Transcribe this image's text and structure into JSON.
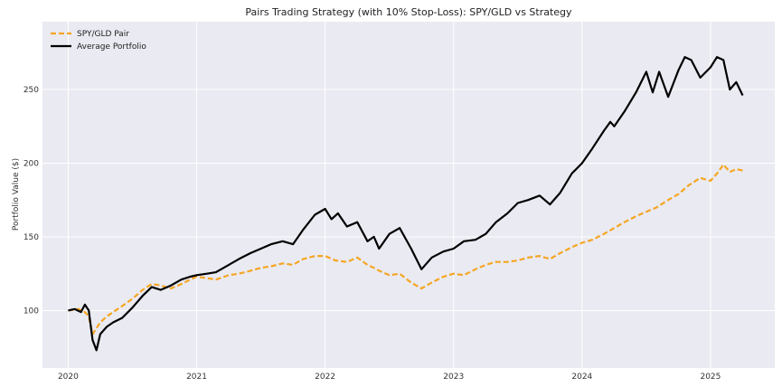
{
  "chart_data": {
    "type": "line",
    "title": "Pairs Trading Strategy (with 10% Stop-Loss): SPY/GLD vs Strategy",
    "xlabel": "",
    "ylabel": "Portfolio Value ($)",
    "xlim": [
      2019.8,
      2025.5
    ],
    "ylim": [
      61,
      296
    ],
    "x_ticks": [
      "2020",
      "2021",
      "2022",
      "2023",
      "2024",
      "2025"
    ],
    "y_ticks": [
      100,
      150,
      200,
      250
    ],
    "grid": true,
    "legend_position": "top-left",
    "background": "#eaeaf2",
    "series": [
      {
        "name": "SPY/GLD Pair",
        "color": "#f5a623",
        "dash": true,
        "points": [
          [
            2020.0,
            100
          ],
          [
            2020.08,
            101
          ],
          [
            2020.13,
            99
          ],
          [
            2020.16,
            96
          ],
          [
            2020.19,
            84
          ],
          [
            2020.22,
            88
          ],
          [
            2020.25,
            92
          ],
          [
            2020.3,
            96
          ],
          [
            2020.35,
            99
          ],
          [
            2020.42,
            103
          ],
          [
            2020.5,
            108
          ],
          [
            2020.58,
            114
          ],
          [
            2020.65,
            118
          ],
          [
            2020.72,
            117
          ],
          [
            2020.8,
            115
          ],
          [
            2020.88,
            118
          ],
          [
            2020.95,
            121
          ],
          [
            2021.0,
            123
          ],
          [
            2021.08,
            122
          ],
          [
            2021.15,
            121
          ],
          [
            2021.25,
            124
          ],
          [
            2021.33,
            125
          ],
          [
            2021.42,
            127
          ],
          [
            2021.5,
            129
          ],
          [
            2021.58,
            130
          ],
          [
            2021.67,
            132
          ],
          [
            2021.75,
            131
          ],
          [
            2021.83,
            135
          ],
          [
            2021.92,
            137
          ],
          [
            2022.0,
            137
          ],
          [
            2022.08,
            134
          ],
          [
            2022.17,
            133
          ],
          [
            2022.25,
            136
          ],
          [
            2022.33,
            131
          ],
          [
            2022.38,
            129
          ],
          [
            2022.42,
            127
          ],
          [
            2022.5,
            124
          ],
          [
            2022.58,
            125
          ],
          [
            2022.67,
            119
          ],
          [
            2022.75,
            115
          ],
          [
            2022.83,
            119
          ],
          [
            2022.92,
            123
          ],
          [
            2023.0,
            125
          ],
          [
            2023.08,
            124
          ],
          [
            2023.17,
            128
          ],
          [
            2023.25,
            131
          ],
          [
            2023.33,
            133
          ],
          [
            2023.42,
            133
          ],
          [
            2023.5,
            134
          ],
          [
            2023.58,
            136
          ],
          [
            2023.67,
            137
          ],
          [
            2023.75,
            135
          ],
          [
            2023.83,
            139
          ],
          [
            2023.92,
            143
          ],
          [
            2024.0,
            146
          ],
          [
            2024.08,
            148
          ],
          [
            2024.17,
            152
          ],
          [
            2024.25,
            156
          ],
          [
            2024.33,
            160
          ],
          [
            2024.42,
            164
          ],
          [
            2024.5,
            167
          ],
          [
            2024.58,
            170
          ],
          [
            2024.67,
            175
          ],
          [
            2024.75,
            179
          ],
          [
            2024.83,
            185
          ],
          [
            2024.92,
            190
          ],
          [
            2025.0,
            188
          ],
          [
            2025.05,
            193
          ],
          [
            2025.1,
            199
          ],
          [
            2025.15,
            194
          ],
          [
            2025.2,
            196
          ],
          [
            2025.25,
            195
          ]
        ]
      },
      {
        "name": "Average Portfolio",
        "color": "#000000",
        "dash": false,
        "points": [
          [
            2020.0,
            100
          ],
          [
            2020.05,
            101
          ],
          [
            2020.1,
            99
          ],
          [
            2020.13,
            104
          ],
          [
            2020.16,
            100
          ],
          [
            2020.19,
            80
          ],
          [
            2020.22,
            73
          ],
          [
            2020.25,
            84
          ],
          [
            2020.3,
            89
          ],
          [
            2020.35,
            92
          ],
          [
            2020.42,
            95
          ],
          [
            2020.5,
            102
          ],
          [
            2020.58,
            110
          ],
          [
            2020.65,
            116
          ],
          [
            2020.72,
            114
          ],
          [
            2020.8,
            117
          ],
          [
            2020.88,
            121
          ],
          [
            2020.95,
            123
          ],
          [
            2021.0,
            124
          ],
          [
            2021.08,
            125
          ],
          [
            2021.15,
            126
          ],
          [
            2021.25,
            131
          ],
          [
            2021.33,
            135
          ],
          [
            2021.42,
            139
          ],
          [
            2021.5,
            142
          ],
          [
            2021.58,
            145
          ],
          [
            2021.67,
            147
          ],
          [
            2021.75,
            145
          ],
          [
            2021.83,
            155
          ],
          [
            2021.92,
            165
          ],
          [
            2022.0,
            169
          ],
          [
            2022.05,
            162
          ],
          [
            2022.1,
            166
          ],
          [
            2022.17,
            157
          ],
          [
            2022.25,
            160
          ],
          [
            2022.33,
            147
          ],
          [
            2022.38,
            150
          ],
          [
            2022.42,
            142
          ],
          [
            2022.5,
            152
          ],
          [
            2022.58,
            156
          ],
          [
            2022.67,
            142
          ],
          [
            2022.75,
            128
          ],
          [
            2022.83,
            136
          ],
          [
            2022.92,
            140
          ],
          [
            2023.0,
            142
          ],
          [
            2023.08,
            147
          ],
          [
            2023.17,
            148
          ],
          [
            2023.25,
            152
          ],
          [
            2023.33,
            160
          ],
          [
            2023.42,
            166
          ],
          [
            2023.5,
            173
          ],
          [
            2023.58,
            175
          ],
          [
            2023.67,
            178
          ],
          [
            2023.75,
            172
          ],
          [
            2023.83,
            180
          ],
          [
            2023.92,
            193
          ],
          [
            2024.0,
            200
          ],
          [
            2024.08,
            210
          ],
          [
            2024.17,
            222
          ],
          [
            2024.22,
            228
          ],
          [
            2024.25,
            225
          ],
          [
            2024.33,
            235
          ],
          [
            2024.42,
            248
          ],
          [
            2024.5,
            262
          ],
          [
            2024.55,
            248
          ],
          [
            2024.6,
            262
          ],
          [
            2024.67,
            245
          ],
          [
            2024.75,
            263
          ],
          [
            2024.8,
            272
          ],
          [
            2024.85,
            270
          ],
          [
            2024.92,
            258
          ],
          [
            2025.0,
            265
          ],
          [
            2025.05,
            272
          ],
          [
            2025.1,
            270
          ],
          [
            2025.15,
            250
          ],
          [
            2025.2,
            255
          ],
          [
            2025.25,
            246
          ]
        ]
      }
    ]
  }
}
